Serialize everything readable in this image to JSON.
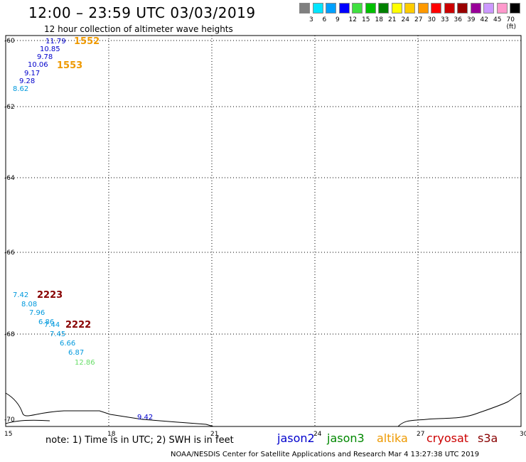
{
  "header": {
    "title": "12:00 – 23:59 UTC 03/03/2019",
    "subtitle": "12 hour collection of altimeter wave heights"
  },
  "legend": {
    "colors": [
      "#808080",
      "#00e5ff",
      "#00a0ff",
      "#0000ff",
      "#40e040",
      "#00c000",
      "#008000",
      "#ffff00",
      "#ffcc00",
      "#ff9900",
      "#ff0000",
      "#cc0000",
      "#990000",
      "#990099",
      "#cc99ff",
      "#ff99cc",
      "#000000"
    ],
    "ticks": [
      "3",
      "6",
      "9",
      "12",
      "15",
      "18",
      "21",
      "24",
      "27",
      "30",
      "33",
      "36",
      "39",
      "42",
      "45",
      "70 (ft)"
    ]
  },
  "axes": {
    "lat_labels": [
      "-60",
      "-62",
      "-64",
      "-66",
      "-68",
      "-70"
    ],
    "lon_labels": [
      "15",
      "18",
      "21",
      "24",
      "27",
      "30"
    ]
  },
  "observations": [
    {
      "text": "11.79",
      "color": "#0000cc"
    },
    {
      "text": "10.85",
      "color": "#0000cc"
    },
    {
      "text": "9.78",
      "color": "#0000cc"
    },
    {
      "text": "10.06",
      "color": "#0000cc"
    },
    {
      "text": "9.17",
      "color": "#0000cc"
    },
    {
      "text": "9.28",
      "color": "#0000cc"
    },
    {
      "text": "8.62",
      "color": "#0099dd"
    },
    {
      "text": "7.42",
      "color": "#0099dd"
    },
    {
      "text": "8.08",
      "color": "#0099dd"
    },
    {
      "text": "7.96",
      "color": "#0099dd"
    },
    {
      "text": "6.86",
      "color": "#0099dd"
    },
    {
      "text": "7.44",
      "color": "#0099dd"
    },
    {
      "text": "7.45",
      "color": "#0099dd"
    },
    {
      "text": "6.66",
      "color": "#0099dd"
    },
    {
      "text": "6.87",
      "color": "#0099dd"
    },
    {
      "text": "12.86",
      "color": "#66dd66"
    },
    {
      "text": "9.42",
      "color": "#0000cc"
    }
  ],
  "pass_labels": [
    {
      "text": "1552",
      "color": "#ee9900"
    },
    {
      "text": "1553",
      "color": "#ee9900"
    },
    {
      "text": "2223",
      "color": "#880000"
    },
    {
      "text": "2222",
      "color": "#880000"
    }
  ],
  "note": "note:  1) Time is in UTC;  2) SWH is in feet",
  "satellites": [
    {
      "name": "jason2",
      "color": "#0000cc"
    },
    {
      "name": "jason3",
      "color": "#008800"
    },
    {
      "name": "altika",
      "color": "#ee9900"
    },
    {
      "name": "cryosat",
      "color": "#cc0000"
    },
    {
      "name": "s3a",
      "color": "#880000"
    }
  ],
  "footer": "NOAA/NESDIS Center for Satellite Applications and Research    Mar  4 13:27:38 UTC 2019"
}
